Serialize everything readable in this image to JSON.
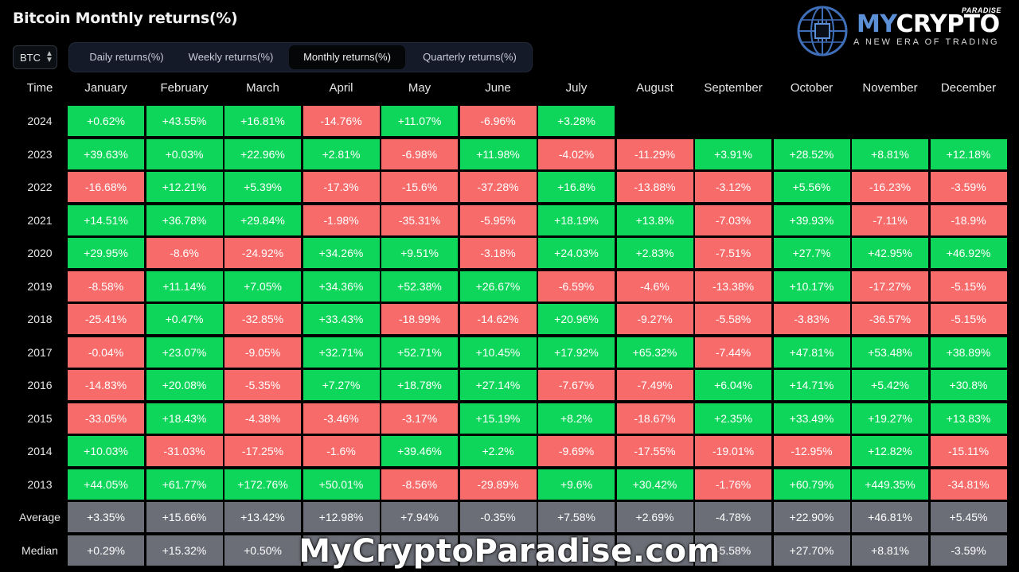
{
  "title": "Bitcoin Monthly returns(%)",
  "logo": {
    "brand_prefix": "MY",
    "brand_suffix": "CRYPTO",
    "super": "PARADISE",
    "tagline": "A NEW ERA OF TRADING"
  },
  "asset_select": {
    "value": "BTC",
    "icon": "up-down-arrows-icon"
  },
  "tabs": [
    {
      "label": "Daily returns(%)",
      "active": false
    },
    {
      "label": "Weekly returns(%)",
      "active": false
    },
    {
      "label": "Monthly returns(%)",
      "active": true
    },
    {
      "label": "Quarterly returns(%)",
      "active": false
    }
  ],
  "table": {
    "corner": "Time",
    "months": [
      "January",
      "February",
      "March",
      "April",
      "May",
      "June",
      "July",
      "August",
      "September",
      "October",
      "November",
      "December"
    ],
    "rows": [
      {
        "label": "2024",
        "values": [
          "+0.62%",
          "+43.55%",
          "+16.81%",
          "-14.76%",
          "+11.07%",
          "-6.96%",
          "+3.28%"
        ]
      },
      {
        "label": "2023",
        "values": [
          "+39.63%",
          "+0.03%",
          "+22.96%",
          "+2.81%",
          "-6.98%",
          "+11.98%",
          "-4.02%",
          "-11.29%",
          "+3.91%",
          "+28.52%",
          "+8.81%",
          "+12.18%"
        ]
      },
      {
        "label": "2022",
        "values": [
          "-16.68%",
          "+12.21%",
          "+5.39%",
          "-17.3%",
          "-15.6%",
          "-37.28%",
          "+16.8%",
          "-13.88%",
          "-3.12%",
          "+5.56%",
          "-16.23%",
          "-3.59%"
        ]
      },
      {
        "label": "2021",
        "values": [
          "+14.51%",
          "+36.78%",
          "+29.84%",
          "-1.98%",
          "-35.31%",
          "-5.95%",
          "+18.19%",
          "+13.8%",
          "-7.03%",
          "+39.93%",
          "-7.11%",
          "-18.9%"
        ]
      },
      {
        "label": "2020",
        "values": [
          "+29.95%",
          "-8.6%",
          "-24.92%",
          "+34.26%",
          "+9.51%",
          "-3.18%",
          "+24.03%",
          "+2.83%",
          "-7.51%",
          "+27.7%",
          "+42.95%",
          "+46.92%"
        ]
      },
      {
        "label": "2019",
        "values": [
          "-8.58%",
          "+11.14%",
          "+7.05%",
          "+34.36%",
          "+52.38%",
          "+26.67%",
          "-6.59%",
          "-4.6%",
          "-13.38%",
          "+10.17%",
          "-17.27%",
          "-5.15%"
        ]
      },
      {
        "label": "2018",
        "values": [
          "-25.41%",
          "+0.47%",
          "-32.85%",
          "+33.43%",
          "-18.99%",
          "-14.62%",
          "+20.96%",
          "-9.27%",
          "-5.58%",
          "-3.83%",
          "-36.57%",
          "-5.15%"
        ]
      },
      {
        "label": "2017",
        "values": [
          "-0.04%",
          "+23.07%",
          "-9.05%",
          "+32.71%",
          "+52.71%",
          "+10.45%",
          "+17.92%",
          "+65.32%",
          "-7.44%",
          "+47.81%",
          "+53.48%",
          "+38.89%"
        ]
      },
      {
        "label": "2016",
        "values": [
          "-14.83%",
          "+20.08%",
          "-5.35%",
          "+7.27%",
          "+18.78%",
          "+27.14%",
          "-7.67%",
          "-7.49%",
          "+6.04%",
          "+14.71%",
          "+5.42%",
          "+30.8%"
        ]
      },
      {
        "label": "2015",
        "values": [
          "-33.05%",
          "+18.43%",
          "-4.38%",
          "-3.46%",
          "-3.17%",
          "+15.19%",
          "+8.2%",
          "-18.67%",
          "+2.35%",
          "+33.49%",
          "+19.27%",
          "+13.83%"
        ]
      },
      {
        "label": "2014",
        "values": [
          "+10.03%",
          "-31.03%",
          "-17.25%",
          "-1.6%",
          "+39.46%",
          "+2.2%",
          "-9.69%",
          "-17.55%",
          "-19.01%",
          "-12.95%",
          "+12.82%",
          "-15.11%"
        ]
      },
      {
        "label": "2013",
        "values": [
          "+44.05%",
          "+61.77%",
          "+172.76%",
          "+50.01%",
          "-8.56%",
          "-29.89%",
          "+9.6%",
          "+30.42%",
          "-1.76%",
          "+60.79%",
          "+449.35%",
          "-34.81%"
        ]
      }
    ],
    "stats": [
      {
        "label": "Average",
        "values": [
          "+3.35%",
          "+15.66%",
          "+13.42%",
          "+12.98%",
          "+7.94%",
          "-0.35%",
          "+7.58%",
          "+2.69%",
          "-4.78%",
          "+22.90%",
          "+46.81%",
          "+5.45%"
        ]
      },
      {
        "label": "Median",
        "values": [
          "+0.29%",
          "+15.32%",
          "+0.50%",
          "",
          "",
          "",
          "",
          "",
          "-5.58%",
          "+27.70%",
          "+8.81%",
          "-3.59%"
        ]
      }
    ]
  },
  "colors": {
    "positive": "#0ed65b",
    "negative": "#f76b6b",
    "stat": "#6c6e77",
    "background": "#000000"
  },
  "watermark": "MyCryptoParadise.com"
}
